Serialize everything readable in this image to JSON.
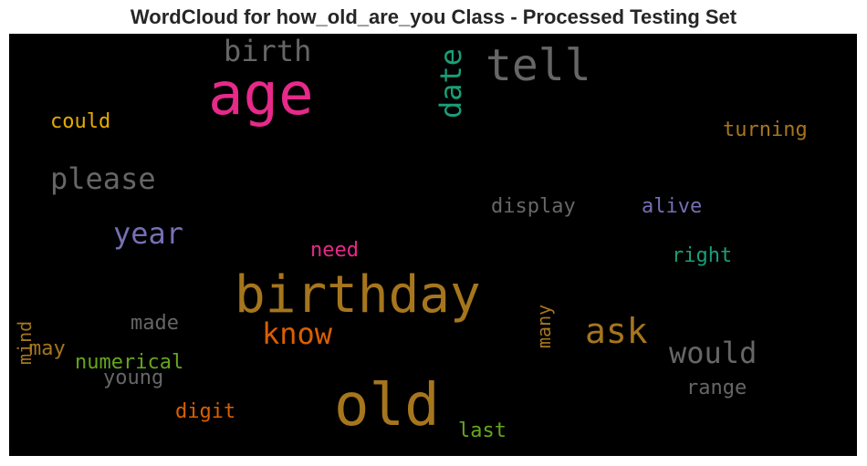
{
  "chart_data": {
    "type": "wordcloud",
    "title": "WordCloud for how_old_are_you Class - Processed Testing Set",
    "background": "#000000",
    "words": [
      {
        "text": "age",
        "color": "#e7298a"
      },
      {
        "text": "tell",
        "color": "#666666"
      },
      {
        "text": "birth",
        "color": "#666666"
      },
      {
        "text": "date",
        "color": "#1b9e77"
      },
      {
        "text": "could",
        "color": "#e6ab02"
      },
      {
        "text": "turning",
        "color": "#a6761d"
      },
      {
        "text": "please",
        "color": "#666666"
      },
      {
        "text": "display",
        "color": "#666666"
      },
      {
        "text": "alive",
        "color": "#7570b3"
      },
      {
        "text": "year",
        "color": "#7570b3"
      },
      {
        "text": "need",
        "color": "#e7298a"
      },
      {
        "text": "right",
        "color": "#1b9e77"
      },
      {
        "text": "birthday",
        "color": "#a6761d"
      },
      {
        "text": "many",
        "color": "#a6761d"
      },
      {
        "text": "ask",
        "color": "#a6761d"
      },
      {
        "text": "know",
        "color": "#d95f02"
      },
      {
        "text": "mind",
        "color": "#a6761d"
      },
      {
        "text": "made",
        "color": "#666666"
      },
      {
        "text": "may",
        "color": "#a6761d"
      },
      {
        "text": "would",
        "color": "#666666"
      },
      {
        "text": "numerical",
        "color": "#66a61e"
      },
      {
        "text": "young",
        "color": "#666666"
      },
      {
        "text": "range",
        "color": "#666666"
      },
      {
        "text": "old",
        "color": "#a6761d"
      },
      {
        "text": "digit",
        "color": "#d95f02"
      },
      {
        "text": "last",
        "color": "#66a61e"
      }
    ]
  }
}
